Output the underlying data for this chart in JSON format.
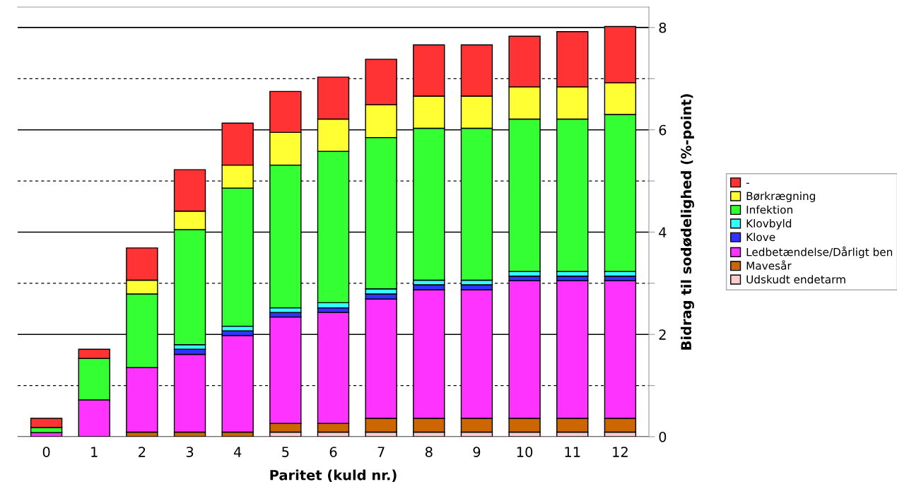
{
  "chart_data": {
    "type": "bar",
    "stacked": true,
    "xlabel": "Paritet (kuld nr.)",
    "ylabel": "Bidrag til sodødelighed (%-point)",
    "categories": [
      "0",
      "1",
      "2",
      "3",
      "4",
      "5",
      "6",
      "7",
      "8",
      "9",
      "10",
      "11",
      "12"
    ],
    "series": [
      {
        "name": "Udskudt endetarm",
        "color": "#ffcccc",
        "values": [
          null,
          null,
          null,
          null,
          null,
          0.09,
          0.09,
          0.09,
          0.09,
          0.09,
          0.09,
          0.09,
          0.09
        ]
      },
      {
        "name": "Mavesår",
        "color": "#cc6600",
        "values": [
          null,
          null,
          0.09,
          0.09,
          0.09,
          0.17,
          0.17,
          0.27,
          0.27,
          0.27,
          0.27,
          0.27,
          0.27
        ]
      },
      {
        "name": "Ledbetændelse/Dårligt ben",
        "color": "#ff33ff",
        "values": [
          0.08,
          0.72,
          1.26,
          1.52,
          1.89,
          2.08,
          2.17,
          2.33,
          2.51,
          2.51,
          2.69,
          2.69,
          2.69
        ]
      },
      {
        "name": "Klove",
        "color": "#3333ff",
        "values": [
          null,
          null,
          null,
          0.1,
          0.09,
          0.09,
          0.09,
          0.1,
          0.1,
          0.1,
          0.09,
          0.09,
          0.09
        ]
      },
      {
        "name": "Klovbyld",
        "color": "#33ffff",
        "values": [
          null,
          null,
          null,
          0.09,
          0.09,
          0.09,
          0.1,
          0.1,
          0.09,
          0.09,
          0.09,
          0.09,
          0.09
        ]
      },
      {
        "name": "Infektion",
        "color": "#33ff33",
        "values": [
          0.1,
          0.81,
          1.44,
          2.25,
          2.7,
          2.79,
          2.96,
          2.96,
          2.97,
          2.97,
          2.98,
          2.98,
          3.07
        ]
      },
      {
        "name": "Børkrægning",
        "color": "#ffff33",
        "values": [
          null,
          null,
          0.27,
          0.36,
          0.45,
          0.64,
          0.63,
          0.64,
          0.63,
          0.63,
          0.63,
          0.63,
          0.62
        ]
      },
      {
        "name": "-",
        "color": "#ff3333",
        "values": [
          0.18,
          0.18,
          0.63,
          0.81,
          0.82,
          0.8,
          0.82,
          0.89,
          1.0,
          1.0,
          0.99,
          1.08,
          1.1
        ]
      }
    ],
    "ylim": [
      0,
      8.4
    ],
    "yticks": [
      0,
      {
        "value": 1,
        "label": null
      },
      2,
      {
        "value": 3,
        "label": null
      },
      4,
      {
        "value": 5,
        "label": null
      },
      6,
      {
        "value": 7,
        "label": null
      },
      8
    ],
    "grid": "y",
    "legend": "right"
  }
}
